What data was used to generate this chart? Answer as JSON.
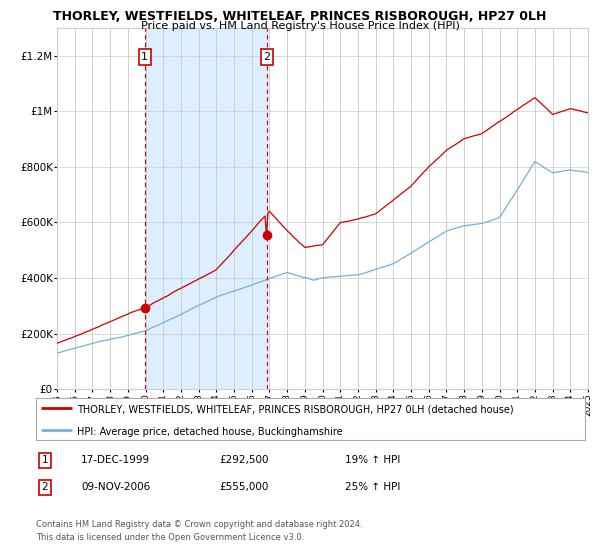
{
  "title1": "THORLEY, WESTFIELDS, WHITELEAF, PRINCES RISBOROUGH, HP27 0LH",
  "title2": "Price paid vs. HM Land Registry's House Price Index (HPI)",
  "legend_line1": "THORLEY, WESTFIELDS, WHITELEAF, PRINCES RISBOROUGH, HP27 0LH (detached house)",
  "legend_line2": "HPI: Average price, detached house, Buckinghamshire",
  "annotation1_label": "1",
  "annotation1_date": "17-DEC-1999",
  "annotation1_price": "£292,500",
  "annotation1_hpi": "19% ↑ HPI",
  "annotation2_label": "2",
  "annotation2_date": "09-NOV-2006",
  "annotation2_price": "£555,000",
  "annotation2_hpi": "25% ↑ HPI",
  "footnote1": "Contains HM Land Registry data © Crown copyright and database right 2024.",
  "footnote2": "This data is licensed under the Open Government Licence v3.0.",
  "red_color": "#cc0000",
  "blue_color": "#7aaed6",
  "shade_color": "#ddeeff",
  "grid_color": "#cccccc",
  "background_color": "#ffffff",
  "dashed_color": "#cc0000",
  "ylim_max": 1300000,
  "xstart_year": 1995,
  "xend_year": 2025,
  "purchase1_year": 1999.96,
  "purchase1_value": 292500,
  "purchase2_year": 2006.86,
  "purchase2_value": 555000
}
